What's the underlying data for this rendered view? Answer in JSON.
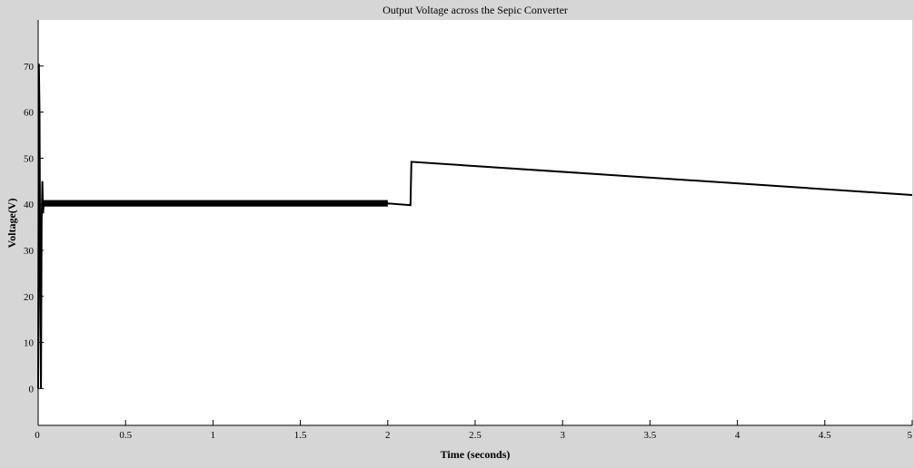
{
  "chart_data": {
    "type": "line",
    "title": "Output Voltage across the Sepic Converter",
    "xlabel": "Time (seconds)",
    "ylabel": "Voltage(V)",
    "xlim": [
      0,
      5
    ],
    "ylim": [
      -8,
      80
    ],
    "xticks": [
      0,
      0.5,
      1,
      1.5,
      2,
      2.5,
      3,
      3.5,
      4,
      4.5,
      5
    ],
    "xtick_labels": [
      "0",
      "0.5",
      "1",
      "1.5",
      "2",
      "2.5",
      "3",
      "3.5",
      "4",
      "4.5",
      "5"
    ],
    "yticks": [
      0,
      10,
      20,
      30,
      40,
      50,
      60,
      70
    ],
    "ytick_labels": [
      "0",
      "10",
      "20",
      "30",
      "40",
      "50",
      "60",
      "70"
    ],
    "grid": false,
    "series": [
      {
        "color": "#000000",
        "x": [
          0,
          0.004,
          0.008,
          0.012,
          0.016,
          0.02,
          0.024,
          0.028,
          0.032,
          0.04,
          0.06,
          2.0,
          2.13,
          2.135,
          5.0
        ],
        "y": [
          0,
          70.5,
          60,
          20,
          0,
          36,
          45,
          38,
          40.5,
          40,
          40,
          40.2,
          39.8,
          49.2,
          42
        ]
      }
    ],
    "noise_band": {
      "x_start": 0.03,
      "x_end": 2.0,
      "center": 40.2,
      "half_width": 0.7
    }
  }
}
